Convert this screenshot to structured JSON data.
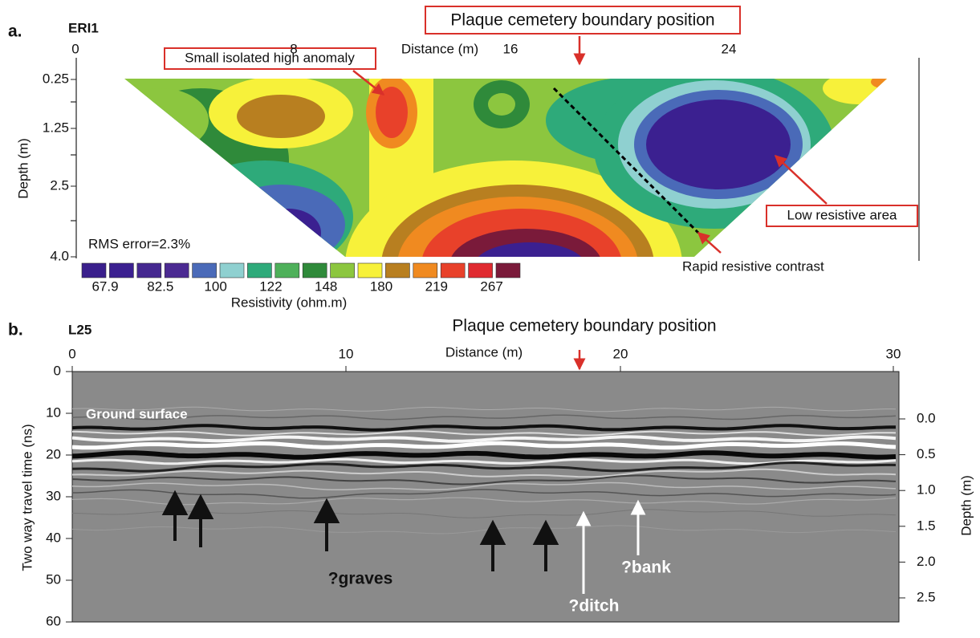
{
  "panel_a": {
    "label": "a.",
    "name": "ERI1",
    "title": "Plaque cemetery boundary position",
    "x_axis_label": "Distance (m)",
    "x_ticks": [
      "0",
      "8",
      "16",
      "24"
    ],
    "y_axis_label": "Depth (m)",
    "y_ticks": [
      "0.25",
      "1.25",
      "2.5",
      "4.0"
    ],
    "annotations": [
      "Small isolated high anomaly",
      "Low resistive area",
      "Rapid resistive contrast"
    ],
    "rms_error": "RMS error=2.3%",
    "colorbar": {
      "labels": [
        "67.9",
        "82.5",
        "100",
        "122",
        "148",
        "180",
        "219",
        "267"
      ],
      "title": "Resistivity (ohm.m)"
    }
  },
  "panel_b": {
    "label": "b.",
    "name": "L25",
    "title": "Plaque cemetery boundary position",
    "x_axis_label": "Distance (m)",
    "x_ticks": [
      "0",
      "10",
      "20",
      "30"
    ],
    "y_axis_label": "Two way travel time (ns)",
    "y_ticks": [
      "0",
      "10",
      "20",
      "30",
      "40",
      "50",
      "60"
    ],
    "y2_axis_label": "Depth (m)",
    "y2_ticks": [
      "0.0",
      "0.5",
      "1.0",
      "1.5",
      "2.0",
      "2.5"
    ],
    "annotations": [
      "Ground surface",
      "?graves",
      "?ditch",
      "?bank"
    ]
  }
}
